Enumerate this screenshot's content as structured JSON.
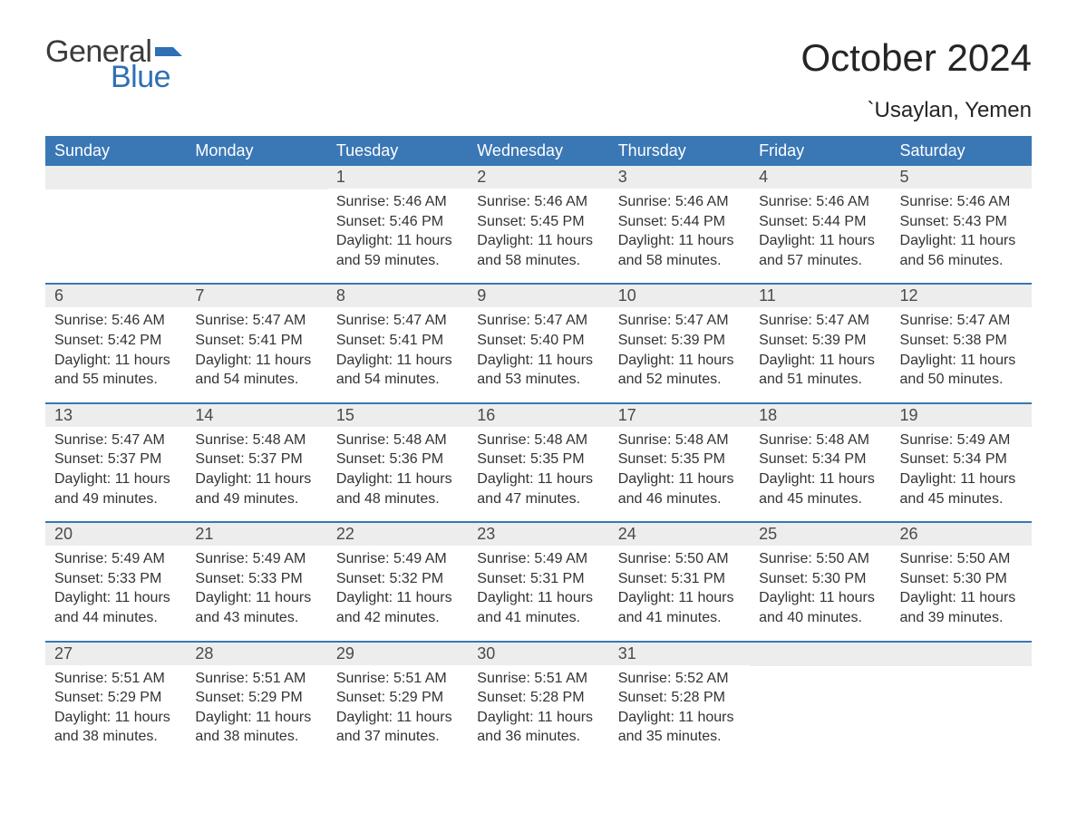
{
  "logo": {
    "word1": "General",
    "word2": "Blue",
    "flag_color": "#2f6fb3"
  },
  "title": "October 2024",
  "location": "`Usaylan, Yemen",
  "colors": {
    "header_bg": "#3a77b5",
    "header_text": "#ffffff",
    "daynum_bg": "#ededed",
    "daynum_text": "#4a4a4a",
    "body_text": "#333333",
    "rule": "#3a77b5",
    "page_bg": "#ffffff"
  },
  "typography": {
    "title_fontsize": 42,
    "location_fontsize": 24,
    "header_fontsize": 18,
    "daynum_fontsize": 18,
    "body_fontsize": 16,
    "logo_fontsize": 34
  },
  "weekdays": [
    "Sunday",
    "Monday",
    "Tuesday",
    "Wednesday",
    "Thursday",
    "Friday",
    "Saturday"
  ],
  "labels": {
    "sunrise": "Sunrise: ",
    "sunset": "Sunset: ",
    "daylight": "Daylight: "
  },
  "weeks": [
    [
      {
        "blank": true
      },
      {
        "blank": true
      },
      {
        "n": 1,
        "sunrise": "5:46 AM",
        "sunset": "5:46 PM",
        "daylight": "11 hours and 59 minutes."
      },
      {
        "n": 2,
        "sunrise": "5:46 AM",
        "sunset": "5:45 PM",
        "daylight": "11 hours and 58 minutes."
      },
      {
        "n": 3,
        "sunrise": "5:46 AM",
        "sunset": "5:44 PM",
        "daylight": "11 hours and 58 minutes."
      },
      {
        "n": 4,
        "sunrise": "5:46 AM",
        "sunset": "5:44 PM",
        "daylight": "11 hours and 57 minutes."
      },
      {
        "n": 5,
        "sunrise": "5:46 AM",
        "sunset": "5:43 PM",
        "daylight": "11 hours and 56 minutes."
      }
    ],
    [
      {
        "n": 6,
        "sunrise": "5:46 AM",
        "sunset": "5:42 PM",
        "daylight": "11 hours and 55 minutes."
      },
      {
        "n": 7,
        "sunrise": "5:47 AM",
        "sunset": "5:41 PM",
        "daylight": "11 hours and 54 minutes."
      },
      {
        "n": 8,
        "sunrise": "5:47 AM",
        "sunset": "5:41 PM",
        "daylight": "11 hours and 54 minutes."
      },
      {
        "n": 9,
        "sunrise": "5:47 AM",
        "sunset": "5:40 PM",
        "daylight": "11 hours and 53 minutes."
      },
      {
        "n": 10,
        "sunrise": "5:47 AM",
        "sunset": "5:39 PM",
        "daylight": "11 hours and 52 minutes."
      },
      {
        "n": 11,
        "sunrise": "5:47 AM",
        "sunset": "5:39 PM",
        "daylight": "11 hours and 51 minutes."
      },
      {
        "n": 12,
        "sunrise": "5:47 AM",
        "sunset": "5:38 PM",
        "daylight": "11 hours and 50 minutes."
      }
    ],
    [
      {
        "n": 13,
        "sunrise": "5:47 AM",
        "sunset": "5:37 PM",
        "daylight": "11 hours and 49 minutes."
      },
      {
        "n": 14,
        "sunrise": "5:48 AM",
        "sunset": "5:37 PM",
        "daylight": "11 hours and 49 minutes."
      },
      {
        "n": 15,
        "sunrise": "5:48 AM",
        "sunset": "5:36 PM",
        "daylight": "11 hours and 48 minutes."
      },
      {
        "n": 16,
        "sunrise": "5:48 AM",
        "sunset": "5:35 PM",
        "daylight": "11 hours and 47 minutes."
      },
      {
        "n": 17,
        "sunrise": "5:48 AM",
        "sunset": "5:35 PM",
        "daylight": "11 hours and 46 minutes."
      },
      {
        "n": 18,
        "sunrise": "5:48 AM",
        "sunset": "5:34 PM",
        "daylight": "11 hours and 45 minutes."
      },
      {
        "n": 19,
        "sunrise": "5:49 AM",
        "sunset": "5:34 PM",
        "daylight": "11 hours and 45 minutes."
      }
    ],
    [
      {
        "n": 20,
        "sunrise": "5:49 AM",
        "sunset": "5:33 PM",
        "daylight": "11 hours and 44 minutes."
      },
      {
        "n": 21,
        "sunrise": "5:49 AM",
        "sunset": "5:33 PM",
        "daylight": "11 hours and 43 minutes."
      },
      {
        "n": 22,
        "sunrise": "5:49 AM",
        "sunset": "5:32 PM",
        "daylight": "11 hours and 42 minutes."
      },
      {
        "n": 23,
        "sunrise": "5:49 AM",
        "sunset": "5:31 PM",
        "daylight": "11 hours and 41 minutes."
      },
      {
        "n": 24,
        "sunrise": "5:50 AM",
        "sunset": "5:31 PM",
        "daylight": "11 hours and 41 minutes."
      },
      {
        "n": 25,
        "sunrise": "5:50 AM",
        "sunset": "5:30 PM",
        "daylight": "11 hours and 40 minutes."
      },
      {
        "n": 26,
        "sunrise": "5:50 AM",
        "sunset": "5:30 PM",
        "daylight": "11 hours and 39 minutes."
      }
    ],
    [
      {
        "n": 27,
        "sunrise": "5:51 AM",
        "sunset": "5:29 PM",
        "daylight": "11 hours and 38 minutes."
      },
      {
        "n": 28,
        "sunrise": "5:51 AM",
        "sunset": "5:29 PM",
        "daylight": "11 hours and 38 minutes."
      },
      {
        "n": 29,
        "sunrise": "5:51 AM",
        "sunset": "5:29 PM",
        "daylight": "11 hours and 37 minutes."
      },
      {
        "n": 30,
        "sunrise": "5:51 AM",
        "sunset": "5:28 PM",
        "daylight": "11 hours and 36 minutes."
      },
      {
        "n": 31,
        "sunrise": "5:52 AM",
        "sunset": "5:28 PM",
        "daylight": "11 hours and 35 minutes."
      },
      {
        "blank": true
      },
      {
        "blank": true
      }
    ]
  ]
}
